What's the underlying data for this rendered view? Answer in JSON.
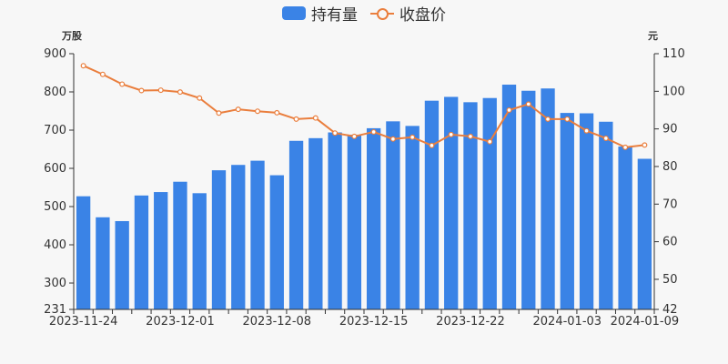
{
  "legend": {
    "bar_label": "持有量",
    "line_label": "收盘价"
  },
  "units": {
    "left": "万股",
    "right": "元"
  },
  "colors": {
    "bar": "#3a83e6",
    "line": "#ea7e3d",
    "axis": "#333333"
  },
  "chart_data": {
    "type": "bar+line",
    "left_axis": {
      "min": 231,
      "max": 900,
      "ticks": [
        231,
        300,
        400,
        500,
        600,
        700,
        800,
        900
      ]
    },
    "right_axis": {
      "min": 42,
      "max": 110,
      "ticks": [
        42,
        50,
        60,
        70,
        80,
        90,
        100,
        110
      ]
    },
    "x_tick_labels": [
      "2023-11-24",
      "2023-12-01",
      "2023-12-08",
      "2023-12-15",
      "2023-12-22",
      "2024-01-03",
      "2024-01-09"
    ],
    "x_tick_positions": [
      0,
      5,
      10,
      15,
      20,
      25,
      29
    ],
    "series": [
      {
        "name": "持有量",
        "type": "bar",
        "axis": "left",
        "values": [
          527,
          472,
          462,
          529,
          538,
          565,
          535,
          595,
          609,
          620,
          582,
          672,
          679,
          694,
          688,
          705,
          723,
          711,
          777,
          787,
          773,
          784,
          819,
          803,
          809,
          745,
          744,
          722,
          657,
          625
        ]
      },
      {
        "name": "收盘价",
        "type": "line",
        "axis": "right",
        "values": [
          106.8,
          104.5,
          101.9,
          100.2,
          100.3,
          99.8,
          98.2,
          94.2,
          95.2,
          94.7,
          94.3,
          92.6,
          92.9,
          88.9,
          88.0,
          89.2,
          87.3,
          87.8,
          85.6,
          88.5,
          88.0,
          86.6,
          95.0,
          96.6,
          92.6,
          92.6,
          89.5,
          87.5,
          85.1,
          85.7
        ]
      }
    ]
  }
}
